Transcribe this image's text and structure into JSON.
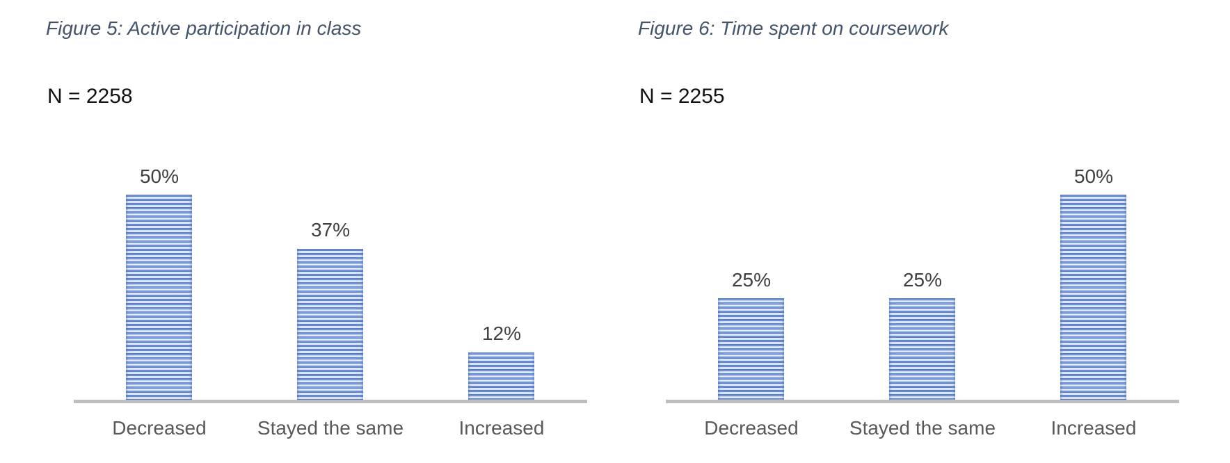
{
  "style": {
    "bar_blue": "#4472C4",
    "bar_blue_dark": "#3E68BD",
    "bar_highlight": "#8FA9DD",
    "stripe_light": "#CBD9F1",
    "stripe_light_bright": "#EAF0FB",
    "axis_gray": "#BEBEBE",
    "title_blue_gray": "#44546A",
    "value_label_gray": "#404040",
    "category_gray": "#595959",
    "n_label_black": "#111111",
    "background": "#FFFFFF"
  },
  "chart_data": [
    {
      "type": "bar",
      "title": "Figure 5: Active participation in class",
      "sample_label": "N = 2258",
      "categories": [
        "Decreased",
        "Stayed the same",
        "Increased"
      ],
      "values": [
        50,
        37,
        12
      ],
      "value_labels": [
        "50%",
        "37%",
        "12%"
      ],
      "ylabel": "",
      "xlabel": "",
      "ylim": [
        0,
        60
      ],
      "grid": false,
      "legend": false,
      "bar_pattern": "horizontal-stripes"
    },
    {
      "type": "bar",
      "title": "Figure 6: Time spent on coursework",
      "sample_label": "N = 2255",
      "categories": [
        "Decreased",
        "Stayed the same",
        "Increased"
      ],
      "values": [
        25,
        25,
        50
      ],
      "value_labels": [
        "25%",
        "25%",
        "50%"
      ],
      "ylabel": "",
      "xlabel": "",
      "ylim": [
        0,
        60
      ],
      "grid": false,
      "legend": false,
      "bar_pattern": "horizontal-stripes"
    }
  ]
}
